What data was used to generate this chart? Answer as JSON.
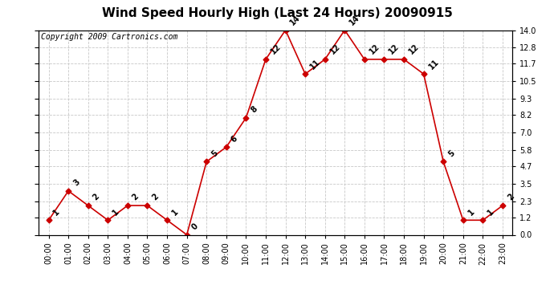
{
  "title": "Wind Speed Hourly High (Last 24 Hours) 20090915",
  "copyright": "Copyright 2009 Cartronics.com",
  "hours": [
    "00:00",
    "01:00",
    "02:00",
    "03:00",
    "04:00",
    "05:00",
    "06:00",
    "07:00",
    "08:00",
    "09:00",
    "10:00",
    "11:00",
    "12:00",
    "13:00",
    "14:00",
    "15:00",
    "16:00",
    "17:00",
    "18:00",
    "19:00",
    "20:00",
    "21:00",
    "22:00",
    "23:00"
  ],
  "values": [
    1,
    3,
    2,
    1,
    2,
    2,
    1,
    0,
    5,
    6,
    8,
    12,
    14,
    11,
    12,
    14,
    12,
    12,
    12,
    11,
    5,
    1,
    1,
    2
  ],
  "line_color": "#cc0000",
  "marker_color": "#cc0000",
  "background_color": "#ffffff",
  "plot_bg_color": "#ffffff",
  "grid_color": "#c8c8c8",
  "yticks": [
    0.0,
    1.2,
    2.3,
    3.5,
    4.7,
    5.8,
    7.0,
    8.2,
    9.3,
    10.5,
    11.7,
    12.8,
    14.0
  ],
  "ylim": [
    0.0,
    14.0
  ],
  "title_fontsize": 11,
  "tick_fontsize": 7,
  "copyright_fontsize": 7
}
